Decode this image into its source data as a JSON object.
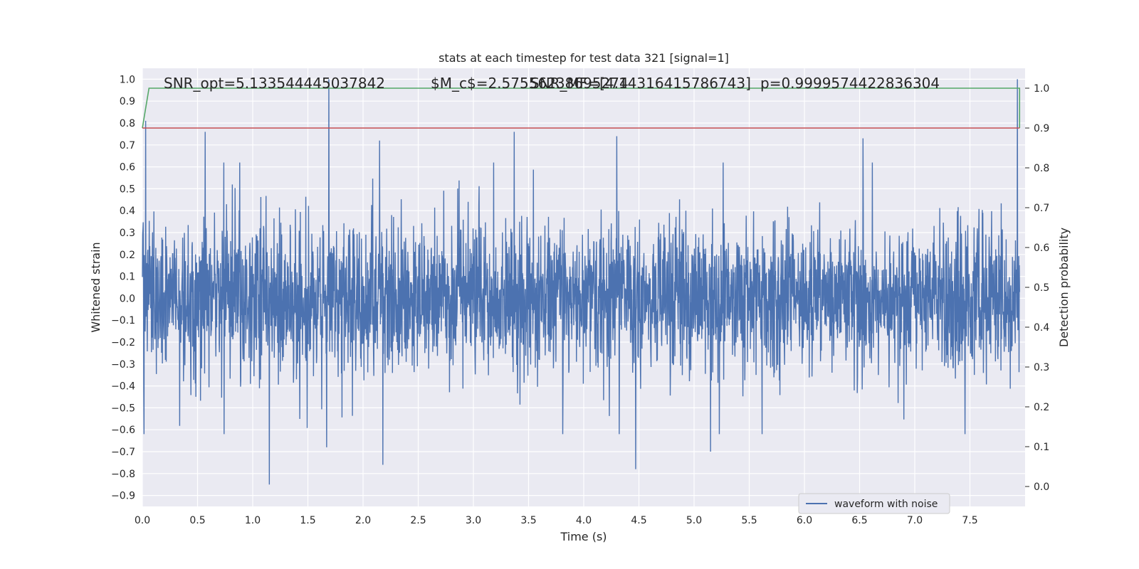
{
  "chart_data": {
    "type": "line",
    "title": "stats at each timestep for test data 321 [signal=1]",
    "xlabel": "Time (s)",
    "ylabel": "Whitened strain",
    "y2label": "Detection probability",
    "xlim": [
      0,
      8
    ],
    "ylim": [
      -0.95,
      1.05
    ],
    "y2lim": [
      -0.05,
      1.05
    ],
    "xticks": [
      0.0,
      0.5,
      1.0,
      1.5,
      2.0,
      2.5,
      3.0,
      3.5,
      4.0,
      4.5,
      5.0,
      5.5,
      6.0,
      6.5,
      7.0,
      7.5
    ],
    "xtick_labels": [
      "0.0",
      "0.5",
      "1.0",
      "1.5",
      "2.0",
      "2.5",
      "3.0",
      "3.5",
      "4.0",
      "4.5",
      "5.0",
      "5.5",
      "6.0",
      "6.5",
      "7.0",
      "7.5"
    ],
    "yticks": [
      1.0,
      0.9,
      0.8,
      0.7,
      0.6,
      0.5,
      0.4,
      0.3,
      0.2,
      0.1,
      0.0,
      -0.1,
      -0.2,
      -0.3,
      -0.4,
      -0.5,
      -0.6,
      -0.7,
      -0.8,
      -0.9
    ],
    "ytick_labels": [
      "1.0",
      "0.9",
      "0.8",
      "0.7",
      "0.6",
      "0.5",
      "0.4",
      "0.3",
      "0.2",
      "0.1",
      "0.0",
      "−0.1",
      "−0.2",
      "−0.3",
      "−0.4",
      "−0.5",
      "−0.6",
      "−0.7",
      "−0.8",
      "−0.9"
    ],
    "y2ticks": [
      1.0,
      0.9,
      0.8,
      0.7,
      0.6,
      0.5,
      0.4,
      0.3,
      0.2,
      0.1,
      0.0
    ],
    "y2tick_labels": [
      "1.0",
      "0.9",
      "0.8",
      "0.7",
      "0.6",
      "0.5",
      "0.4",
      "0.3",
      "0.2",
      "0.1",
      "0.0"
    ],
    "grid": true,
    "legend": {
      "placement": "lower-right",
      "entries": [
        "waveform with noise"
      ]
    },
    "annotations": [
      {
        "text": "SNR_opt=5.133544445037842"
      },
      {
        "text": "$M_c$=2.57556238695274"
      },
      {
        "text": "SNR_MF=[4.14316415786743]"
      },
      {
        "text": "p=0.9999574422836304"
      }
    ],
    "series": [
      {
        "name": "waveform with noise",
        "axis": "left",
        "color": "#4c72b0",
        "style": "dense-noise",
        "t_range": [
          0,
          7.95
        ],
        "peaks": [
          {
            "t": 0.03,
            "value": 0.81
          },
          {
            "t": 0.57,
            "value": 0.76
          },
          {
            "t": 1.15,
            "value": -0.85
          },
          {
            "t": 1.69,
            "value": 1.0
          },
          {
            "t": 1.67,
            "value": -0.68
          },
          {
            "t": 2.15,
            "value": 0.72
          },
          {
            "t": 2.18,
            "value": -0.76
          },
          {
            "t": 3.37,
            "value": 0.76
          },
          {
            "t": 4.3,
            "value": 0.74
          },
          {
            "t": 4.47,
            "value": -0.78
          },
          {
            "t": 5.15,
            "value": -0.7
          },
          {
            "t": 6.53,
            "value": 0.73
          },
          {
            "t": 7.93,
            "value": 1.0
          }
        ]
      },
      {
        "name": "",
        "axis": "right",
        "color": "#55a868",
        "points": [
          [
            0.0,
            0.9
          ],
          [
            0.06,
            1.0
          ],
          [
            7.95,
            1.0
          ],
          [
            7.95,
            0.9
          ]
        ]
      },
      {
        "name": "",
        "axis": "right",
        "color": "#c44e52",
        "points": [
          [
            0.0,
            0.9
          ],
          [
            7.95,
            0.9
          ]
        ]
      }
    ]
  }
}
